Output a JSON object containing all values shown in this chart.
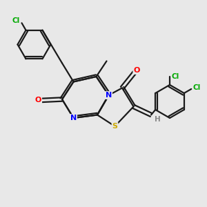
{
  "bg_color": "#e8e8e8",
  "bond_color": "#1a1a1a",
  "atom_colors": {
    "N": "#0000ff",
    "O": "#ff0000",
    "S": "#ccaa00",
    "Cl": "#00aa00",
    "H": "#888888",
    "C": "#1a1a1a"
  },
  "lw": 1.6
}
